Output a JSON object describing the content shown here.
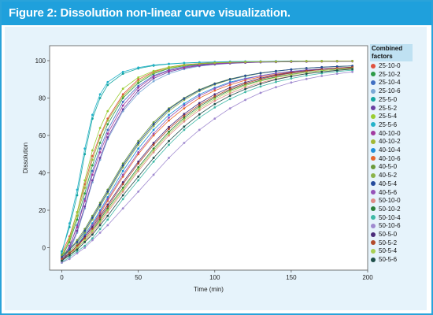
{
  "header": {
    "title": "Figure 2: Dissolution non-linear curve visualization."
  },
  "chart_data": {
    "type": "line",
    "xlabel": "Time (min)",
    "ylabel": "Dissolution",
    "xlim": [
      -8,
      200
    ],
    "ylim": [
      -12,
      108
    ],
    "xticks": [
      0,
      50,
      100,
      150,
      200
    ],
    "yticks": [
      0,
      20,
      40,
      60,
      80,
      100
    ],
    "grid": false,
    "legend_title": "Combined\nfactors",
    "legend_position": "right",
    "x": [
      0,
      5,
      10,
      15,
      20,
      25,
      30,
      40,
      50,
      60,
      70,
      80,
      90,
      100,
      110,
      120,
      130,
      140,
      150,
      160,
      170,
      180,
      190
    ],
    "series": [
      {
        "name": "25-10-0",
        "color": "#e0523f",
        "values": [
          -3,
          6,
          19,
          34,
          49,
          60,
          69,
          82,
          90,
          94,
          96.5,
          97.8,
          98.5,
          99,
          99.2,
          99.4,
          99.5,
          99.6,
          99.7,
          99.7,
          99.8,
          99.8,
          99.8
        ]
      },
      {
        "name": "25-10-2",
        "color": "#2e9b47",
        "values": [
          -5,
          3,
          15,
          29,
          44,
          56,
          66,
          80,
          88,
          93,
          95.8,
          97.2,
          98.1,
          98.7,
          99,
          99.2,
          99.4,
          99.5,
          99.6,
          99.6,
          99.7,
          99.7,
          99.7
        ]
      },
      {
        "name": "25-10-4",
        "color": "#3f6fc2",
        "values": [
          -7,
          0,
          12,
          26,
          41,
          53,
          63,
          78,
          86.5,
          92,
          95,
          96.8,
          97.9,
          98.5,
          98.9,
          99.1,
          99.3,
          99.4,
          99.5,
          99.6,
          99.6,
          99.7,
          99.7
        ]
      },
      {
        "name": "25-10-6",
        "color": "#7aa8d6",
        "values": [
          -8,
          -2,
          8,
          21,
          35,
          47,
          58,
          73,
          82.5,
          89,
          93,
          95.5,
          97,
          97.9,
          98.5,
          98.9,
          99.1,
          99.3,
          99.4,
          99.5,
          99.6,
          99.6,
          99.7
        ]
      },
      {
        "name": "25-5-0",
        "color": "#13a5a0",
        "values": [
          -2,
          11,
          28,
          50,
          69,
          80,
          87,
          93,
          95.8,
          97.3,
          98.2,
          98.7,
          99,
          99.2,
          99.4,
          99.5,
          99.6,
          99.6,
          99.7,
          99.7,
          99.7,
          99.8,
          99.8
        ]
      },
      {
        "name": "25-5-2",
        "color": "#6a3fa3",
        "values": [
          -7,
          -1,
          9,
          22,
          36,
          48,
          59,
          74,
          84,
          90.5,
          94,
          96,
          97.3,
          98.1,
          98.6,
          98.9,
          99.2,
          99.3,
          99.4,
          99.5,
          99.6,
          99.6,
          99.7
        ]
      },
      {
        "name": "25-5-4",
        "color": "#9acd32",
        "values": [
          -5,
          5,
          19,
          36,
          52,
          64,
          73,
          85,
          91,
          94.5,
          96.5,
          97.7,
          98.4,
          98.9,
          99.1,
          99.3,
          99.5,
          99.6,
          99.6,
          99.7,
          99.7,
          99.8,
          99.8
        ]
      },
      {
        "name": "25-5-6",
        "color": "#24b2c9",
        "values": [
          -3,
          13,
          31,
          53,
          71,
          82,
          88.5,
          94,
          96.3,
          97.6,
          98.3,
          98.8,
          99.1,
          99.3,
          99.5,
          99.6,
          99.6,
          99.7,
          99.7,
          99.8,
          99.8,
          99.8,
          99.8
        ]
      },
      {
        "name": "40-10-0",
        "color": "#a23aa0",
        "values": [
          -6,
          1,
          11,
          25,
          39,
          51,
          61,
          76,
          85.5,
          91.5,
          94.6,
          96.4,
          97.6,
          98.4,
          98.8,
          99.1,
          99.3,
          99.4,
          99.5,
          99.6,
          99.6,
          99.7,
          99.7
        ]
      },
      {
        "name": "40-10-2",
        "color": "#a2b733",
        "values": [
          -4,
          4,
          17,
          32,
          47,
          59,
          68,
          81,
          89,
          93.5,
          96,
          97.4,
          98.3,
          98.8,
          99.1,
          99.3,
          99.4,
          99.5,
          99.6,
          99.7,
          99.7,
          99.7,
          99.8
        ]
      },
      {
        "name": "40-10-4",
        "color": "#1d8fd9",
        "values": [
          -6,
          -3,
          1,
          7,
          13,
          20,
          27,
          41,
          53,
          63,
          71,
          77,
          82,
          85.5,
          88.5,
          90.5,
          92,
          93.3,
          94.3,
          95,
          95.6,
          96.1,
          96.5
        ]
      },
      {
        "name": "40-10-6",
        "color": "#e6662e",
        "values": [
          -6,
          -3,
          0,
          6,
          12,
          18,
          25,
          38,
          50,
          60,
          68,
          74.5,
          80,
          84,
          87,
          89.5,
          91.3,
          92.7,
          93.8,
          94.7,
          95.4,
          95.9,
          96.3
        ]
      },
      {
        "name": "40-5-0",
        "color": "#6b9a3a",
        "values": [
          -4,
          -1,
          4,
          10,
          17,
          24,
          31,
          45,
          57,
          67,
          74.5,
          80,
          84.5,
          87.8,
          90.2,
          92,
          93.4,
          94.5,
          95.3,
          96,
          96.5,
          96.9,
          97.2
        ]
      },
      {
        "name": "40-5-2",
        "color": "#8ab34a",
        "values": [
          -5,
          -2,
          2,
          8,
          15,
          22,
          29,
          43,
          55,
          65,
          73,
          79,
          83.7,
          87.2,
          89.8,
          91.7,
          93.2,
          94.3,
          95.2,
          95.9,
          96.4,
          96.8,
          97.1
        ]
      },
      {
        "name": "40-5-4",
        "color": "#234a9c",
        "values": [
          -5,
          -1,
          3,
          9,
          16,
          23,
          30,
          44,
          56,
          66,
          74,
          79.7,
          84.2,
          87.6,
          90,
          91.9,
          93.3,
          94.4,
          95.3,
          96,
          96.5,
          96.9,
          97.2
        ]
      },
      {
        "name": "40-5-6",
        "color": "#9552b8",
        "values": [
          -6,
          -3,
          1,
          6,
          12,
          19,
          26,
          39,
          51,
          61,
          69.5,
          76,
          81.2,
          85,
          88,
          90.2,
          91.9,
          93.2,
          94.2,
          95,
          95.6,
          96.1,
          96.5
        ]
      },
      {
        "name": "50-10-0",
        "color": "#e08a86",
        "values": [
          -7,
          -4,
          -1,
          3,
          8,
          13,
          19,
          30,
          41,
          51,
          60,
          67.5,
          73.5,
          78.5,
          82.5,
          85.7,
          88.2,
          90.2,
          91.8,
          93,
          94,
          94.8,
          95.4
        ]
      },
      {
        "name": "50-10-2",
        "color": "#2c7f3a",
        "values": [
          -7,
          -4,
          0,
          4,
          9,
          15,
          21,
          32,
          43,
          53,
          62,
          69.5,
          75.5,
          80.3,
          84.2,
          87.2,
          89.5,
          91.3,
          92.7,
          93.8,
          94.7,
          95.4,
          95.9
        ]
      },
      {
        "name": "50-10-4",
        "color": "#3fb9a6",
        "values": [
          -8,
          -5,
          -2,
          1,
          5,
          10,
          15,
          26,
          36,
          46,
          55,
          63,
          69.5,
          75,
          79.5,
          83.2,
          86.2,
          88.6,
          90.5,
          92,
          93.2,
          94.2,
          94.9
        ]
      },
      {
        "name": "50-10-6",
        "color": "#a08ad0",
        "values": [
          -8,
          -6,
          -3,
          0,
          4,
          8,
          12,
          21,
          30,
          39,
          48,
          56,
          63,
          69,
          74.5,
          79,
          82.8,
          85.8,
          88.3,
          90.2,
          91.8,
          93,
          94
        ]
      },
      {
        "name": "50-5-0",
        "color": "#4a2b7a",
        "values": [
          -7,
          -3,
          1,
          6,
          11,
          17,
          23,
          35,
          46,
          56,
          64.5,
          71.5,
          77.3,
          82,
          85.6,
          88.4,
          90.6,
          92.3,
          93.6,
          94.6,
          95.4,
          96,
          96.5
        ]
      },
      {
        "name": "50-5-2",
        "color": "#b24a2a",
        "values": [
          -6,
          -3,
          1,
          5,
          10,
          16,
          22,
          34,
          45,
          55,
          63.5,
          70.5,
          76.3,
          81,
          84.8,
          87.8,
          90.1,
          91.9,
          93.3,
          94.4,
          95.2,
          95.9,
          96.4
        ]
      },
      {
        "name": "50-5-4",
        "color": "#a9cf54",
        "values": [
          -7,
          -4,
          0,
          4,
          9,
          14,
          20,
          31,
          42,
          52,
          61,
          68.5,
          74.5,
          79.5,
          83.5,
          86.6,
          89.1,
          91,
          92.5,
          93.7,
          94.6,
          95.3,
          95.8
        ]
      },
      {
        "name": "50-5-6",
        "color": "#1f4f4a",
        "values": [
          -7,
          -4,
          -1,
          3,
          7,
          12,
          17,
          28,
          38,
          48,
          57,
          64.7,
          71.3,
          76.8,
          81.2,
          84.8,
          87.6,
          89.9,
          91.6,
          93,
          94,
          94.8,
          95.5
        ]
      }
    ]
  }
}
